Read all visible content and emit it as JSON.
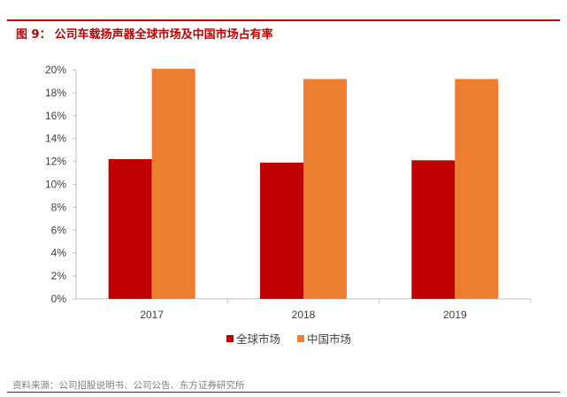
{
  "figure": {
    "label": "图 9：",
    "title": "公司车载扬声器全球市场及中国市场占有率"
  },
  "source": "资料来源：公司招股说明书、公司公告、东方证券研究所",
  "colors": {
    "accent": "#c00000",
    "series_1": "#c00000",
    "series_2": "#ed7d31",
    "axis": "#bfbfbf",
    "text": "#404040"
  },
  "chart_data": {
    "type": "bar",
    "title": "公司车载扬声器全球市场及中国市场占有率",
    "categories": [
      "2017",
      "2018",
      "2019"
    ],
    "series": [
      {
        "name": "全球市场",
        "values": [
          12.2,
          11.9,
          12.1
        ]
      },
      {
        "name": "中国市场",
        "values": [
          20.1,
          19.2,
          19.2
        ]
      }
    ],
    "y_ticks": [
      "0%",
      "2%",
      "4%",
      "6%",
      "8%",
      "10%",
      "12%",
      "14%",
      "16%",
      "18%",
      "20%"
    ],
    "ylim": [
      0,
      20
    ],
    "y_unit": "%",
    "xlabel": "",
    "ylabel": "",
    "grid": false,
    "legend_position": "bottom-center"
  }
}
